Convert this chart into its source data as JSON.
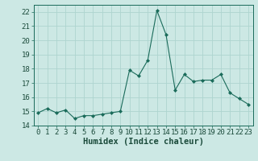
{
  "x": [
    0,
    1,
    2,
    3,
    4,
    5,
    6,
    7,
    8,
    9,
    10,
    11,
    12,
    13,
    14,
    15,
    16,
    17,
    18,
    19,
    20,
    21,
    22,
    23
  ],
  "y": [
    14.9,
    15.2,
    14.9,
    15.1,
    14.5,
    14.7,
    14.7,
    14.8,
    14.9,
    15.0,
    17.9,
    17.5,
    18.6,
    22.1,
    20.4,
    16.5,
    17.6,
    17.1,
    17.2,
    17.2,
    17.6,
    16.3,
    15.9,
    15.5
  ],
  "xlabel": "Humidex (Indice chaleur)",
  "ylim": [
    14,
    22.5
  ],
  "yticks": [
    14,
    15,
    16,
    17,
    18,
    19,
    20,
    21,
    22
  ],
  "xlim": [
    -0.5,
    23.5
  ],
  "line_color": "#1a6b5a",
  "marker": "D",
  "marker_size": 2.0,
  "bg_color": "#cce8e4",
  "grid_color": "#aed4cf",
  "fig_bg": "#cce8e4",
  "spine_color": "#1a6b5a",
  "tick_label_fontsize": 6.5,
  "xlabel_fontsize": 7.5
}
